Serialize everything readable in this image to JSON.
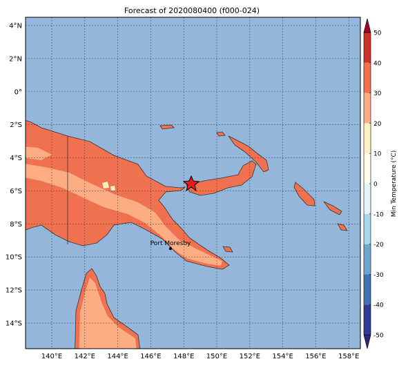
{
  "title": "Forecast of 2020080400 (f000-024)",
  "lat_ticks": [
    {
      "value": 4,
      "label": "4°N"
    },
    {
      "value": 2,
      "label": "2°N"
    },
    {
      "value": 0,
      "label": "0°"
    },
    {
      "value": -2,
      "label": "2°S"
    },
    {
      "value": -4,
      "label": "4°S"
    },
    {
      "value": -6,
      "label": "6°S"
    },
    {
      "value": -8,
      "label": "8°S"
    },
    {
      "value": -10,
      "label": "10°S"
    },
    {
      "value": -12,
      "label": "12°S"
    },
    {
      "value": -14,
      "label": "14°S"
    }
  ],
  "lon_ticks": [
    {
      "value": 140,
      "label": "140°E"
    },
    {
      "value": 142,
      "label": "142°E"
    },
    {
      "value": 144,
      "label": "144°E"
    },
    {
      "value": 146,
      "label": "146°E"
    },
    {
      "value": 148,
      "label": "148°E"
    },
    {
      "value": 150,
      "label": "150°E"
    },
    {
      "value": 152,
      "label": "152°E"
    },
    {
      "value": 154,
      "label": "154°E"
    },
    {
      "value": 156,
      "label": "156°E"
    },
    {
      "value": 158,
      "label": "158°E"
    }
  ],
  "colorbar": {
    "label": "Min Temperature (°C)",
    "ticks": [
      -50,
      -40,
      -30,
      -20,
      -10,
      0,
      10,
      20,
      30,
      40,
      50
    ],
    "colors": [
      "#282a7d",
      "#2f3c96",
      "#4271b4",
      "#6fa6cf",
      "#a9d6e8",
      "#e3f4f9",
      "#fffde6",
      "#fff0c2",
      "#fcad84",
      "#f0714f",
      "#d0302a",
      "#a50026"
    ]
  },
  "places": [
    {
      "label": "Port Moresby"
    }
  ]
}
